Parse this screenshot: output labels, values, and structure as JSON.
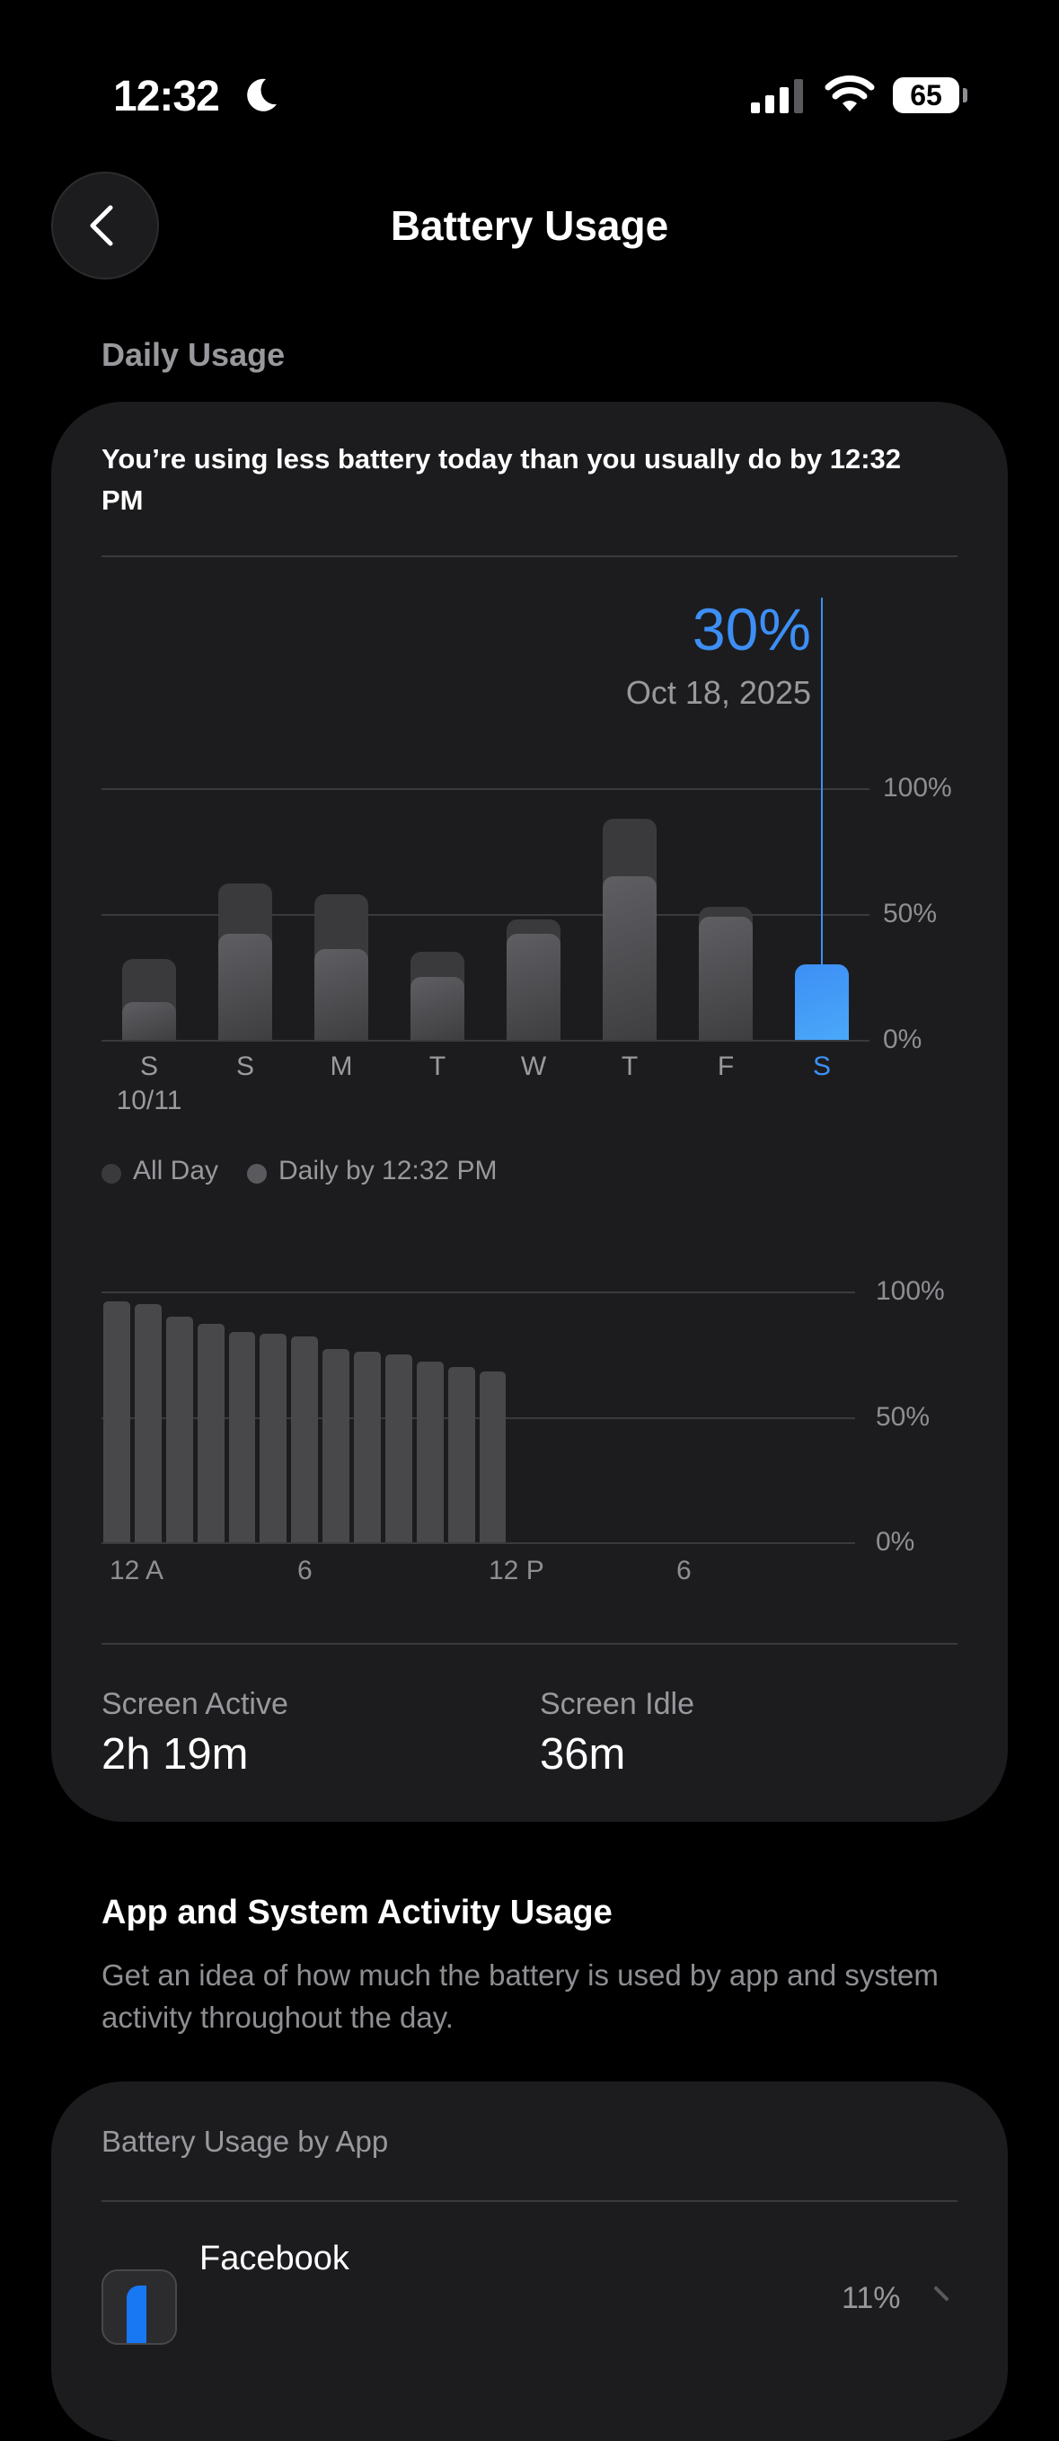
{
  "status_bar": {
    "time": "12:32",
    "focus_icon": "moon-icon",
    "battery_level": "65"
  },
  "header": {
    "title": "Battery Usage",
    "back_icon": "chevron-left-icon"
  },
  "daily_usage": {
    "section_label": "Daily Usage",
    "summary": "You’re using less battery today than you usually do by 12:32 PM",
    "selected_value": "30%",
    "selected_date": "Oct 18, 2025",
    "legend": [
      "All Day",
      "Daily by 12:32 PM"
    ],
    "screen_active_label": "Screen Active",
    "screen_active_value": "2h 19m",
    "screen_idle_label": "Screen Idle",
    "screen_idle_value": "36m"
  },
  "colors": {
    "accent": "#3d8ff5",
    "all_day": "#3a3a3c",
    "daily_by": "#5a5a5e",
    "card": "#1c1c1e"
  },
  "chart_data": [
    {
      "type": "bar",
      "categories": [
        "S",
        "S",
        "M",
        "T",
        "W",
        "T",
        "F",
        "S"
      ],
      "sub_label_first": "10/11",
      "series": [
        {
          "name": "All Day",
          "values": [
            32,
            62,
            58,
            35,
            48,
            88,
            53,
            30
          ]
        },
        {
          "name": "Daily by 12:32 PM",
          "values": [
            15,
            42,
            36,
            25,
            42,
            65,
            49,
            30
          ]
        }
      ],
      "highlighted_index": 7,
      "yticks": [
        "100%",
        "50%",
        "0%"
      ],
      "ylim": [
        0,
        100
      ],
      "grid": true,
      "legend_position": "bottom-left"
    },
    {
      "type": "bar",
      "values": [
        96,
        95,
        90,
        87,
        84,
        83,
        82,
        77,
        76,
        75,
        72,
        70,
        68
      ],
      "xticks": [
        "12 A",
        "6",
        "12 P",
        "6"
      ],
      "yticks": [
        "100%",
        "50%",
        "0%"
      ],
      "ylim": [
        0,
        100
      ],
      "slots": 24,
      "grid": true
    }
  ],
  "activity": {
    "title": "App and System Activity Usage",
    "description": "Get an idea of how much the battery is used by app and system activity throughout the day."
  },
  "by_app": {
    "title": "Battery Usage by App",
    "apps": [
      {
        "name": "Facebook",
        "percent": "11%",
        "icon": "facebook-icon"
      }
    ]
  }
}
